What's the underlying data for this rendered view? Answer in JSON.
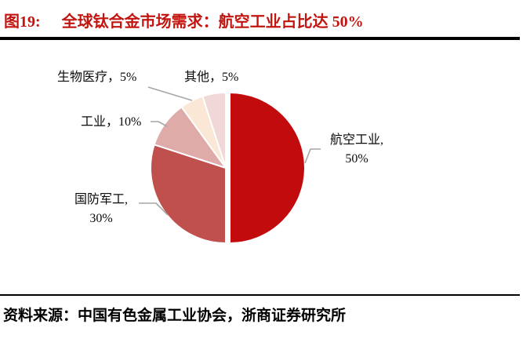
{
  "figure": {
    "label": "图19:",
    "title": "全球钛合金市场需求：航空工业占比达 50%"
  },
  "chart_data": {
    "type": "pie",
    "title": "全球钛合金市场需求",
    "categories": [
      "航空工业",
      "国防军工",
      "工业",
      "生物医疗",
      "其他"
    ],
    "slice_ids": [
      "aviation",
      "defense",
      "industry",
      "biomedical",
      "other"
    ],
    "values": [
      50,
      30,
      10,
      5,
      5
    ],
    "unit": "%",
    "start_angle_deg": 0,
    "direction": "clockwise",
    "colors": [
      "#C20B0D",
      "#C0504D",
      "#DFABA9",
      "#FAE7D5",
      "#EFD8D7"
    ],
    "explode_offsets": [
      [
        3,
        0
      ],
      [
        -2,
        0
      ],
      [
        -2,
        0
      ],
      [
        -2,
        0
      ],
      [
        -2,
        0
      ]
    ],
    "slice_border_color": "#FFFFFF",
    "labels_outside": true,
    "leader_line_color": "#A6A6A6",
    "legend": "none"
  },
  "chart_labels": {
    "aviation": {
      "line1": "航空工业,",
      "line2": "50%"
    },
    "defense": {
      "line1": "国防军工,",
      "line2": "30%"
    },
    "industry": {
      "text": "工业，10%"
    },
    "biomedical": {
      "text": "生物医疗，5%"
    },
    "other": {
      "text": "其他，5%"
    }
  },
  "footer": {
    "source": "资料来源：中国有色金属工业协会，浙商证券研究所"
  },
  "colors": {
    "title_red": "#C2150F",
    "rule_black": "#000000",
    "label_text": "#0A0A0A",
    "leader_gray": "#A6A6A6",
    "background": "#FFFFFF"
  }
}
